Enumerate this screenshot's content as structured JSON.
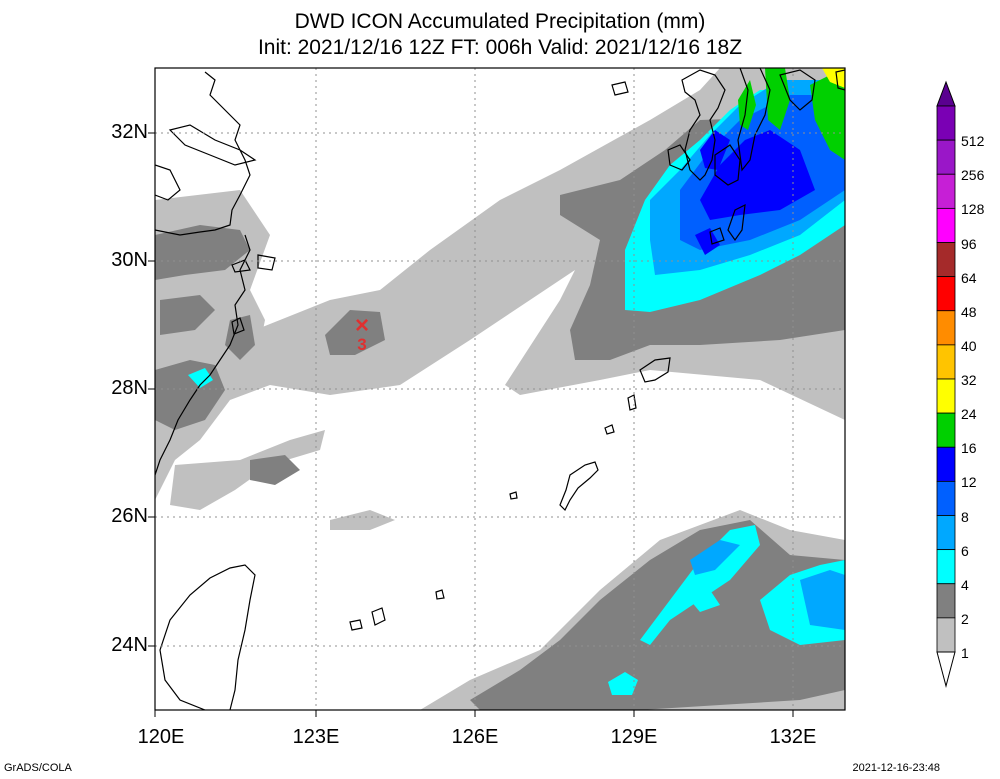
{
  "title_line1": "DWD ICON Accumulated Precipitation (mm)",
  "title_line2": "Init: 2021/12/16 12Z  FT: 006h  Valid: 2021/12/16 18Z",
  "map": {
    "lon_range": [
      120,
      133.25
    ],
    "lat_range": [
      23,
      33
    ],
    "lat_ticks": [
      "32N",
      "30N",
      "28N",
      "26N",
      "24N"
    ],
    "lat_values": [
      32,
      30,
      28,
      26,
      24
    ],
    "lon_ticks": [
      "120E",
      "123E",
      "126E",
      "129E",
      "132E"
    ],
    "lon_values": [
      120,
      123,
      126,
      129,
      132
    ],
    "grid": true,
    "marker": {
      "symbol": "×",
      "label": "3",
      "lon": 123.85,
      "lat": 29.0,
      "color": "#e03030"
    }
  },
  "colorbar": {
    "levels": [
      "512",
      "256",
      "128",
      "96",
      "64",
      "48",
      "40",
      "32",
      "24",
      "16",
      "12",
      "8",
      "6",
      "4",
      "2",
      "1"
    ],
    "colors": [
      "#7a00b4",
      "#9a17c8",
      "#c61fd6",
      "#ff00ff",
      "#a52a2a",
      "#ff0000",
      "#ff8c00",
      "#ffc400",
      "#ffff00",
      "#00d000",
      "#0000ff",
      "#0060ff",
      "#00a8ff",
      "#00ffff",
      "#808080",
      "#c0c0c0"
    ]
  },
  "footer": {
    "credit": "GrADS/COLA",
    "timestamp": "2021-12-16-23:48"
  }
}
